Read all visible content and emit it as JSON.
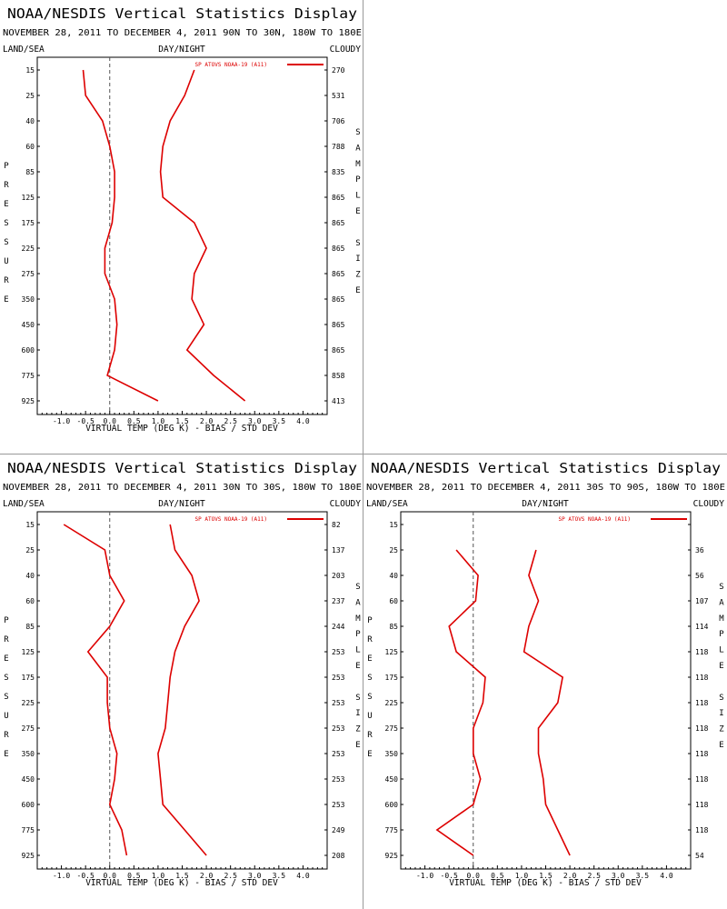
{
  "panels": [
    {
      "title": "NOAA/NESDIS Vertical Statistics Display",
      "subtitle": "NOVEMBER 28, 2011 TO DECEMBER 4, 2011 90N TO 30N, 180W TO 180E",
      "left_header": "LAND/SEA",
      "center_header": "DAY/NIGHT",
      "right_header": "CLOUDY"
    },
    {
      "title": "NOAA/NESDIS Vertical Statistics Display",
      "subtitle": "NOVEMBER 28, 2011 TO DECEMBER 4, 2011 30N TO 30S, 180W TO 180E",
      "left_header": "LAND/SEA",
      "center_header": "DAY/NIGHT",
      "right_header": "CLOUDY"
    },
    {
      "title": "NOAA/NESDIS Vertical Statistics Display",
      "subtitle": "NOVEMBER 28, 2011 TO DECEMBER 4, 2011 30S TO 90S, 180W TO 180E",
      "left_header": "LAND/SEA",
      "center_header": "DAY/NIGHT",
      "right_header": "CLOUDY"
    }
  ],
  "chart_data": [
    {
      "type": "line",
      "xlabel": "VIRTUAL TEMP (DEG K) - BIAS / STD DEV",
      "ylabel": "PRESSURE",
      "y2label": "SAMPLE SIZE",
      "xlim": [
        -1.5,
        4.5
      ],
      "xticks": [
        -1.0,
        -0.5,
        0.0,
        0.5,
        1.0,
        1.5,
        2.0,
        2.5,
        3.0,
        3.5,
        4.0
      ],
      "xtick_labels": [
        "-1.0",
        "-0.5",
        "0.0",
        "0.5",
        "1.0",
        "1.5",
        "2.0",
        "2.5",
        "3.0",
        "3.5",
        "4.0"
      ],
      "pressure_levels": [
        "15",
        "25",
        "40",
        "60",
        "85",
        "125",
        "175",
        "225",
        "275",
        "350",
        "450",
        "600",
        "775",
        "925"
      ],
      "legend": "SP ATOVS NOAA-19 (A11)",
      "color": "#dd0000",
      "series": [
        {
          "values": [
            -0.55,
            -0.5,
            -0.15,
            0.0,
            0.1,
            0.1,
            0.05,
            -0.1,
            -0.1,
            0.1,
            0.15,
            0.1,
            -0.05,
            1.0
          ]
        },
        {
          "values": [
            1.75,
            1.55,
            1.25,
            1.1,
            1.05,
            1.1,
            1.75,
            2.0,
            1.75,
            1.7,
            1.95,
            1.6,
            2.15,
            2.8
          ]
        }
      ],
      "sample_sizes": [
        "270",
        "531",
        "706",
        "788",
        "835",
        "865",
        "865",
        "865",
        "865",
        "865",
        "865",
        "865",
        "858",
        "413"
      ]
    },
    {
      "type": "line",
      "xlabel": "VIRTUAL TEMP (DEG K) - BIAS / STD DEV",
      "ylabel": "PRESSURE",
      "y2label": "SAMPLE SIZE",
      "xlim": [
        -1.5,
        4.5
      ],
      "xticks": [
        -1.0,
        -0.5,
        0.0,
        0.5,
        1.0,
        1.5,
        2.0,
        2.5,
        3.0,
        3.5,
        4.0
      ],
      "xtick_labels": [
        "-1.0",
        "-0.5",
        "0.0",
        "0.5",
        "1.0",
        "1.5",
        "2.0",
        "2.5",
        "3.0",
        "3.5",
        "4.0"
      ],
      "pressure_levels": [
        "15",
        "25",
        "40",
        "60",
        "85",
        "125",
        "175",
        "225",
        "275",
        "350",
        "450",
        "600",
        "775",
        "925"
      ],
      "legend": "SP ATOVS NOAA-19 (A11)",
      "color": "#dd0000",
      "series": [
        {
          "values": [
            -0.95,
            -0.1,
            0.0,
            0.3,
            0.0,
            -0.45,
            -0.05,
            -0.05,
            0.0,
            0.15,
            0.1,
            0.0,
            0.25,
            0.35
          ]
        },
        {
          "values": [
            1.25,
            1.35,
            1.7,
            1.85,
            1.55,
            1.35,
            1.25,
            1.2,
            1.15,
            1.0,
            1.05,
            1.1,
            1.55,
            2.0
          ]
        }
      ],
      "sample_sizes": [
        "82",
        "137",
        "203",
        "237",
        "244",
        "253",
        "253",
        "253",
        "253",
        "253",
        "253",
        "253",
        "249",
        "208"
      ]
    },
    {
      "type": "line",
      "xlabel": "VIRTUAL TEMP (DEG K) - BIAS / STD DEV",
      "ylabel": "PRESSURE",
      "y2label": "SAMPLE SIZE",
      "xlim": [
        -1.5,
        4.5
      ],
      "xticks": [
        -1.0,
        -0.5,
        0.0,
        0.5,
        1.0,
        1.5,
        2.0,
        2.5,
        3.0,
        3.5,
        4.0
      ],
      "xtick_labels": [
        "-1.0",
        "-0.5",
        "0.0",
        "0.5",
        "1.0",
        "1.5",
        "2.0",
        "2.5",
        "3.0",
        "3.5",
        "4.0"
      ],
      "pressure_levels": [
        "15",
        "25",
        "40",
        "60",
        "85",
        "125",
        "175",
        "225",
        "275",
        "350",
        "450",
        "600",
        "775",
        "925"
      ],
      "legend": "SP ATOVS NOAA-19 (A11)",
      "color": "#dd0000",
      "series": [
        {
          "start_index": 1,
          "values": [
            -0.35,
            0.1,
            0.05,
            -0.5,
            -0.35,
            0.25,
            0.2,
            0.0,
            0.0,
            0.15,
            0.0,
            -0.75,
            0.0
          ]
        },
        {
          "start_index": 1,
          "values": [
            1.3,
            1.15,
            1.35,
            1.15,
            1.05,
            1.85,
            1.75,
            1.35,
            1.35,
            1.45,
            1.5,
            1.75,
            2.0
          ]
        }
      ],
      "sample_sizes": [
        "",
        "36",
        "56",
        "107",
        "114",
        "118",
        "118",
        "118",
        "118",
        "118",
        "118",
        "118",
        "118",
        "54"
      ]
    }
  ]
}
